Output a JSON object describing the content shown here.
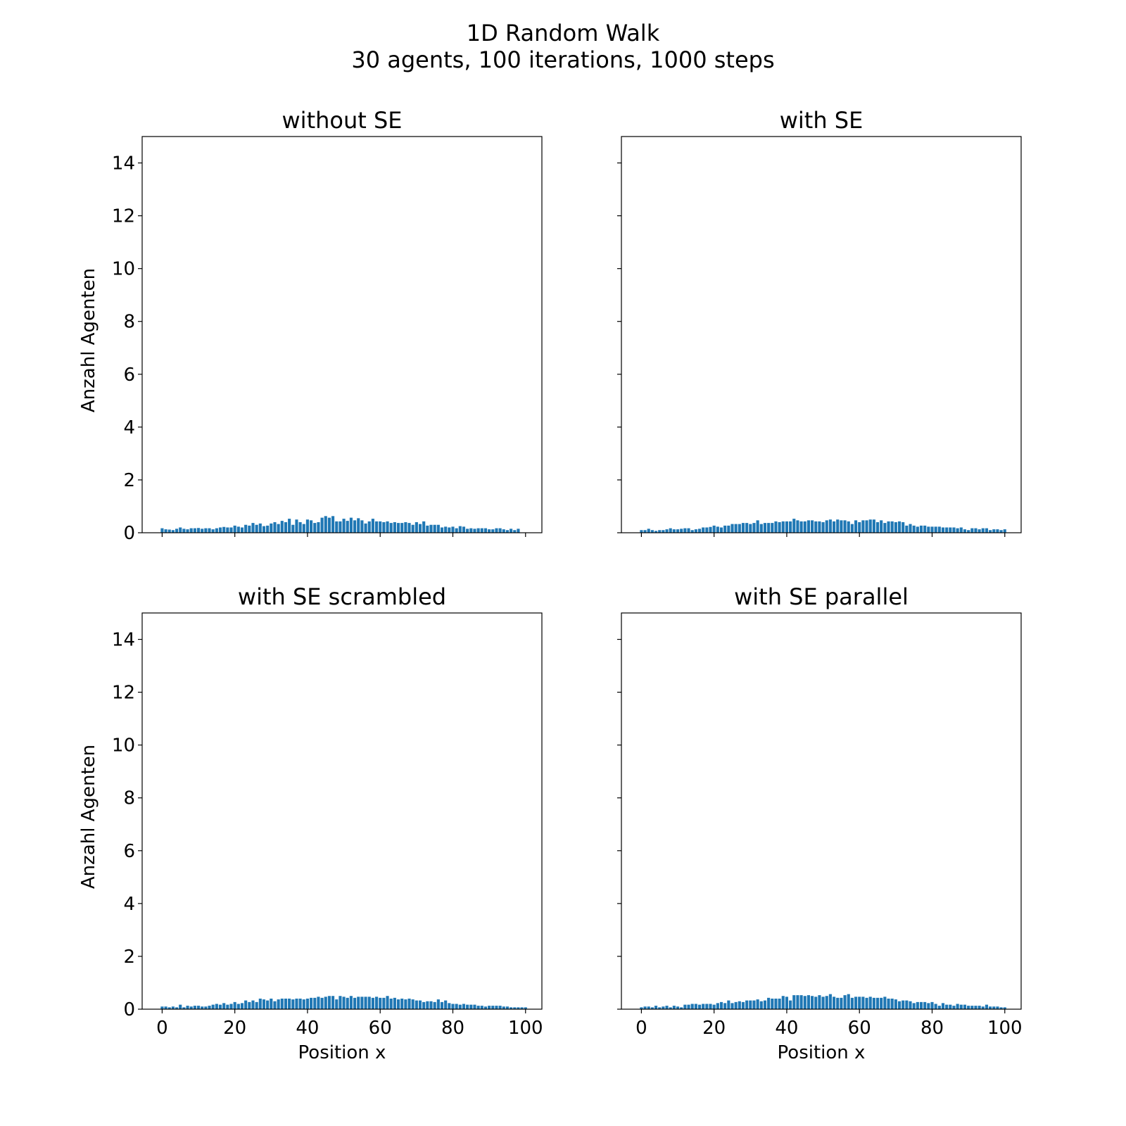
{
  "figure": {
    "title_line1": "1D Random Walk",
    "title_line2": "30 agents, 100 iterations, 1000 steps"
  },
  "colors": {
    "bar": "#1f77b4",
    "axis": "#000000",
    "background": "#ffffff"
  },
  "chart_data": [
    {
      "type": "bar",
      "title": "without SE",
      "xlabel": "",
      "ylabel": "Anzahl Agenten",
      "xlim": [
        -5.5,
        104.5
      ],
      "ylim": [
        0,
        15
      ],
      "xticks": [
        "0",
        "20",
        "40",
        "60",
        "80",
        "100"
      ],
      "yticks": [
        "0",
        "2",
        "4",
        "6",
        "8",
        "10",
        "12",
        "14"
      ],
      "grid": false,
      "x_start": 0,
      "values": [
        0.17,
        0.13,
        0.12,
        0.1,
        0.15,
        0.2,
        0.15,
        0.13,
        0.17,
        0.17,
        0.18,
        0.15,
        0.17,
        0.17,
        0.13,
        0.17,
        0.2,
        0.22,
        0.2,
        0.2,
        0.27,
        0.23,
        0.2,
        0.3,
        0.27,
        0.37,
        0.3,
        0.35,
        0.25,
        0.27,
        0.35,
        0.4,
        0.33,
        0.45,
        0.4,
        0.53,
        0.3,
        0.5,
        0.4,
        0.33,
        0.5,
        0.47,
        0.37,
        0.4,
        0.57,
        0.63,
        0.57,
        0.63,
        0.43,
        0.43,
        0.53,
        0.45,
        0.57,
        0.47,
        0.55,
        0.47,
        0.35,
        0.43,
        0.53,
        0.43,
        0.43,
        0.4,
        0.43,
        0.37,
        0.4,
        0.37,
        0.37,
        0.4,
        0.37,
        0.3,
        0.4,
        0.33,
        0.43,
        0.27,
        0.3,
        0.3,
        0.3,
        0.2,
        0.23,
        0.2,
        0.23,
        0.17,
        0.25,
        0.23,
        0.15,
        0.17,
        0.15,
        0.17,
        0.17,
        0.17,
        0.13,
        0.13,
        0.17,
        0.17,
        0.13,
        0.1,
        0.15,
        0.1,
        0.15
      ]
    },
    {
      "type": "bar",
      "title": "with SE",
      "xlabel": "",
      "ylabel": "",
      "xlim": [
        -5.5,
        104.5
      ],
      "ylim": [
        0,
        15
      ],
      "xticks": [
        "0",
        "20",
        "40",
        "60",
        "80",
        "100"
      ],
      "yticks": [
        "",
        "",
        "",
        "",
        "",
        "",
        "",
        ""
      ],
      "grid": false,
      "x_start": 0,
      "values": [
        0.1,
        0.1,
        0.15,
        0.1,
        0.07,
        0.1,
        0.1,
        0.13,
        0.17,
        0.13,
        0.13,
        0.15,
        0.17,
        0.17,
        0.1,
        0.13,
        0.15,
        0.2,
        0.2,
        0.22,
        0.27,
        0.23,
        0.2,
        0.27,
        0.27,
        0.33,
        0.33,
        0.33,
        0.37,
        0.37,
        0.33,
        0.37,
        0.47,
        0.33,
        0.37,
        0.37,
        0.37,
        0.43,
        0.4,
        0.43,
        0.43,
        0.43,
        0.53,
        0.47,
        0.43,
        0.43,
        0.47,
        0.47,
        0.43,
        0.43,
        0.4,
        0.47,
        0.5,
        0.43,
        0.5,
        0.47,
        0.47,
        0.43,
        0.33,
        0.47,
        0.4,
        0.47,
        0.47,
        0.5,
        0.5,
        0.4,
        0.47,
        0.37,
        0.43,
        0.43,
        0.4,
        0.43,
        0.4,
        0.27,
        0.33,
        0.27,
        0.23,
        0.27,
        0.27,
        0.23,
        0.23,
        0.23,
        0.23,
        0.2,
        0.2,
        0.2,
        0.2,
        0.17,
        0.2,
        0.13,
        0.1,
        0.17,
        0.17,
        0.13,
        0.17,
        0.17,
        0.1,
        0.13,
        0.13,
        0.1,
        0.13
      ]
    },
    {
      "type": "bar",
      "title": "with SE scrambled",
      "xlabel": "Position x",
      "ylabel": "Anzahl Agenten",
      "xlim": [
        -5.5,
        104.5
      ],
      "ylim": [
        0,
        15
      ],
      "xticks": [
        "0",
        "20",
        "40",
        "60",
        "80",
        "100"
      ],
      "yticks": [
        "0",
        "2",
        "4",
        "6",
        "8",
        "10",
        "12",
        "14"
      ],
      "grid": false,
      "x_start": 0,
      "values": [
        0.1,
        0.1,
        0.07,
        0.1,
        0.07,
        0.17,
        0.07,
        0.13,
        0.1,
        0.13,
        0.13,
        0.1,
        0.1,
        0.13,
        0.17,
        0.2,
        0.17,
        0.23,
        0.17,
        0.2,
        0.27,
        0.2,
        0.23,
        0.33,
        0.27,
        0.33,
        0.27,
        0.4,
        0.37,
        0.33,
        0.4,
        0.3,
        0.37,
        0.4,
        0.4,
        0.4,
        0.37,
        0.4,
        0.4,
        0.37,
        0.4,
        0.43,
        0.43,
        0.47,
        0.43,
        0.47,
        0.5,
        0.5,
        0.37,
        0.5,
        0.47,
        0.43,
        0.5,
        0.43,
        0.47,
        0.47,
        0.47,
        0.47,
        0.43,
        0.47,
        0.43,
        0.43,
        0.5,
        0.4,
        0.43,
        0.37,
        0.4,
        0.37,
        0.4,
        0.37,
        0.33,
        0.33,
        0.27,
        0.3,
        0.3,
        0.27,
        0.37,
        0.27,
        0.33,
        0.23,
        0.2,
        0.2,
        0.17,
        0.2,
        0.17,
        0.17,
        0.17,
        0.13,
        0.13,
        0.1,
        0.13,
        0.13,
        0.13,
        0.13,
        0.1,
        0.1,
        0.07,
        0.07,
        0.07,
        0.07,
        0.07
      ]
    },
    {
      "type": "bar",
      "title": "with SE parallel",
      "xlabel": "Position x",
      "ylabel": "",
      "xlim": [
        -5.5,
        104.5
      ],
      "ylim": [
        0,
        15
      ],
      "xticks": [
        "0",
        "20",
        "40",
        "60",
        "80",
        "100"
      ],
      "yticks": [
        "",
        "",
        "",
        "",
        "",
        "",
        "",
        ""
      ],
      "grid": false,
      "x_start": 0,
      "values": [
        0.07,
        0.1,
        0.1,
        0.07,
        0.13,
        0.07,
        0.1,
        0.13,
        0.07,
        0.13,
        0.1,
        0.07,
        0.17,
        0.17,
        0.2,
        0.2,
        0.17,
        0.2,
        0.2,
        0.2,
        0.17,
        0.23,
        0.27,
        0.23,
        0.33,
        0.23,
        0.27,
        0.3,
        0.27,
        0.33,
        0.33,
        0.33,
        0.37,
        0.3,
        0.33,
        0.43,
        0.4,
        0.4,
        0.4,
        0.5,
        0.47,
        0.33,
        0.53,
        0.53,
        0.53,
        0.5,
        0.53,
        0.5,
        0.47,
        0.53,
        0.47,
        0.5,
        0.57,
        0.47,
        0.43,
        0.43,
        0.53,
        0.57,
        0.43,
        0.47,
        0.47,
        0.47,
        0.43,
        0.47,
        0.43,
        0.43,
        0.43,
        0.47,
        0.4,
        0.4,
        0.37,
        0.3,
        0.33,
        0.33,
        0.3,
        0.23,
        0.27,
        0.27,
        0.27,
        0.23,
        0.27,
        0.2,
        0.13,
        0.23,
        0.17,
        0.17,
        0.13,
        0.2,
        0.17,
        0.17,
        0.13,
        0.13,
        0.13,
        0.13,
        0.1,
        0.17,
        0.1,
        0.1,
        0.1,
        0.07,
        0.07
      ]
    }
  ]
}
